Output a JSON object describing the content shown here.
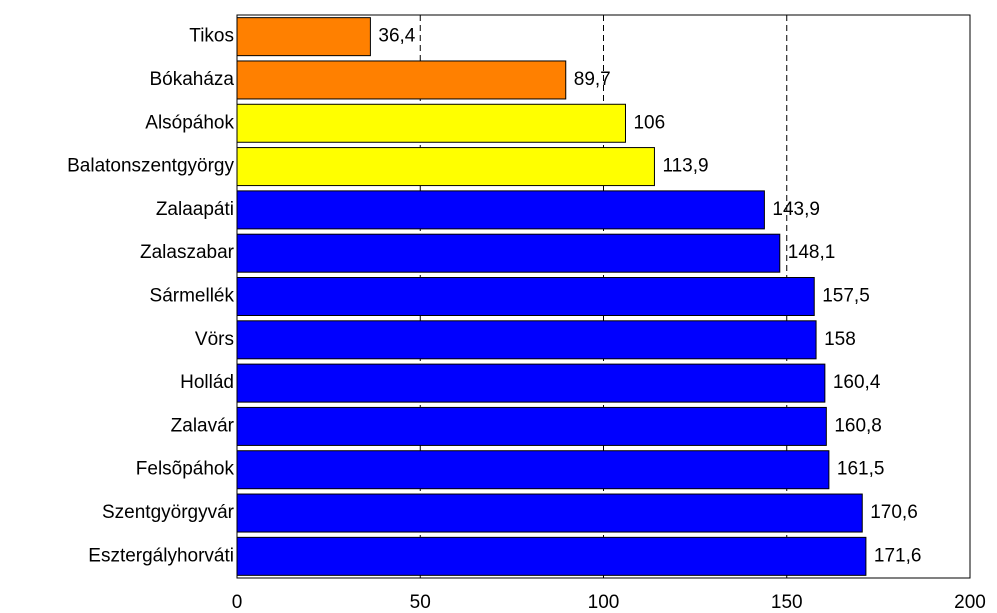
{
  "chart_data": {
    "type": "hbar",
    "categories": [
      "Tikos",
      "Bókaháza",
      "Alsópáhok",
      "Balatonszentgyörgy",
      "Zalaapáti",
      "Zalaszabar",
      "Sármellék",
      "Vörs",
      "Hollád",
      "Zalavár",
      "Felsõpáhok",
      "Szentgyörgyvár",
      "Esztergályhorváti"
    ],
    "values": [
      36.4,
      89.7,
      106,
      113.9,
      143.9,
      148.1,
      157.5,
      158,
      160.4,
      160.8,
      161.5,
      170.6,
      171.6
    ],
    "value_labels": [
      "36,4",
      "89,7",
      "106",
      "113,9",
      "143,9",
      "148,1",
      "157,5",
      "158",
      "160,4",
      "160,8",
      "161,5",
      "170,6",
      "171,6"
    ],
    "colors": [
      "#ff8000",
      "#ff8000",
      "#ffff00",
      "#ffff00",
      "#0000ff",
      "#0000ff",
      "#0000ff",
      "#0000ff",
      "#0000ff",
      "#0000ff",
      "#0000ff",
      "#0000ff",
      "#0000ff"
    ],
    "xlim": [
      0,
      200
    ],
    "xticks": [
      0,
      50,
      100,
      150,
      200
    ],
    "grid": true
  }
}
